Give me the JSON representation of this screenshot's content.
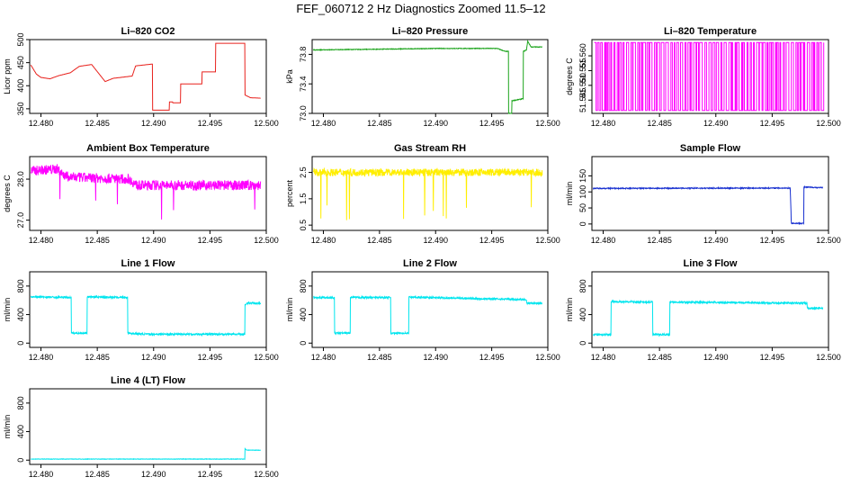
{
  "title": "FEF_060712  2 Hz Diagnostics Zoomed 11.5–12",
  "chart_data": [
    {
      "type": "line",
      "title": "Li–820 CO2",
      "xlabel": "",
      "ylabel": "Licor ppm",
      "color": "#e8211c",
      "xlim": [
        12.479,
        12.5
      ],
      "ylim": [
        340,
        500
      ],
      "xticks": [
        "12.480",
        "12.485",
        "12.490",
        "12.495",
        "12.500"
      ],
      "yticks": [
        "350",
        "400",
        "450",
        "500"
      ],
      "noise": 0.01,
      "series": [
        {
          "x": [
            12.4791,
            12.4796,
            12.48,
            12.4808,
            12.4816,
            12.4816,
            12.4826,
            12.4826,
            12.4834,
            12.4834,
            12.4845,
            12.4845,
            12.4857,
            12.4857,
            12.4864,
            12.4864,
            12.4881,
            12.4881,
            12.4884,
            12.4884,
            12.4899,
            12.4899,
            12.4914,
            12.4914,
            12.4917,
            12.4917,
            12.4924,
            12.4924,
            12.4943,
            12.4943,
            12.4955,
            12.4955,
            12.4981,
            12.4981,
            12.4986,
            12.4995
          ],
          "y": [
            445,
            425,
            418,
            415,
            422,
            422,
            428,
            428,
            442,
            442,
            446,
            446,
            409,
            409,
            416,
            416,
            421,
            421,
            443,
            443,
            447,
            347,
            347,
            365,
            365,
            363,
            363,
            404,
            404,
            430,
            430,
            492,
            492,
            380,
            374,
            373
          ]
        }
      ]
    },
    {
      "type": "line",
      "title": "Li–820 Pressure",
      "xlabel": "",
      "ylabel": "kPa",
      "color": "#1ca41c",
      "xlim": [
        12.479,
        12.5
      ],
      "ylim": [
        73.0,
        74.0
      ],
      "xticks": [
        "12.480",
        "12.485",
        "12.490",
        "12.495",
        "12.500"
      ],
      "yticks": [
        "73.0",
        "73.4",
        "73.8"
      ],
      "noise": 0.004,
      "series": [
        {
          "x": [
            12.4791,
            12.485,
            12.49,
            12.4955,
            12.4962,
            12.4965,
            12.4965,
            12.4968,
            12.4968,
            12.4978,
            12.4978,
            12.4981,
            12.4982,
            12.4985,
            12.4995
          ],
          "y": [
            73.86,
            73.87,
            73.88,
            73.88,
            73.84,
            73.84,
            73.0,
            73.0,
            73.17,
            73.2,
            73.84,
            73.86,
            73.98,
            73.9,
            73.9
          ]
        }
      ]
    },
    {
      "type": "line",
      "title": "Li–820 Temperature",
      "xlabel": "",
      "ylabel": "degrees C",
      "color": "#ff00ff",
      "xlim": [
        12.479,
        12.5
      ],
      "ylim": [
        51.5405,
        51.5655
      ],
      "xticks": [
        "12.480",
        "12.485",
        "12.490",
        "12.495",
        "12.500"
      ],
      "yticks": [
        "51.545",
        "51.550",
        "51.555",
        "51.560"
      ],
      "series": [
        {
          "x": [],
          "y": []
        }
      ],
      "square_wave": {
        "low": 51.5415,
        "high": 51.5645,
        "transitions": 140
      }
    },
    {
      "type": "line",
      "title": "Ambient Box Temperature",
      "xlabel": "",
      "ylabel": "degrees C",
      "color": "#ff00ff",
      "xlim": [
        12.479,
        12.5
      ],
      "ylim": [
        26.75,
        28.55
      ],
      "xticks": [
        "12.480",
        "12.485",
        "12.490",
        "12.495",
        "12.500"
      ],
      "yticks": [
        "27.0",
        "28.0"
      ],
      "noise": 0.12,
      "series": [
        {
          "x": [
            12.4791,
            12.4815,
            12.482,
            12.4825,
            12.4878,
            12.4885,
            12.4995
          ],
          "y": [
            28.2,
            28.25,
            28.1,
            28.05,
            28.0,
            27.85,
            27.85
          ]
        }
      ]
    },
    {
      "type": "line",
      "title": "Gas Stream RH",
      "xlabel": "",
      "ylabel": "percent",
      "color": "#ffee00",
      "xlim": [
        12.479,
        12.5
      ],
      "ylim": [
        0.3,
        3.1
      ],
      "xticks": [
        "12.480",
        "12.485",
        "12.490",
        "12.495",
        "12.500"
      ],
      "yticks": [
        "0.5",
        "1.5",
        "2.5"
      ],
      "noise": 0.14,
      "series": [
        {
          "x": [
            12.4791,
            12.4995
          ],
          "y": [
            2.5,
            2.5
          ]
        }
      ]
    },
    {
      "type": "line",
      "title": "Sample Flow",
      "xlabel": "",
      "ylabel": "ml/min",
      "color": "#1830d0",
      "xlim": [
        12.479,
        12.5
      ],
      "ylim": [
        -20,
        210
      ],
      "xticks": [
        "12.480",
        "12.485",
        "12.490",
        "12.495",
        "12.500"
      ],
      "yticks": [
        "0",
        "50",
        "100",
        "150"
      ],
      "noise": 1.5,
      "series": [
        {
          "x": [
            12.4791,
            12.4966,
            12.4966,
            12.4967,
            12.4978,
            12.4978,
            12.4995
          ],
          "y": [
            111,
            112,
            112,
            2,
            2,
            115,
            113
          ]
        }
      ]
    },
    {
      "type": "line",
      "title": "Line 1 Flow",
      "xlabel": "",
      "ylabel": "ml/min",
      "color": "#00e5ee",
      "xlim": [
        12.479,
        12.5
      ],
      "ylim": [
        -60,
        1000
      ],
      "xticks": [
        "12.480",
        "12.485",
        "12.490",
        "12.495",
        "12.500"
      ],
      "yticks": [
        "0",
        "400",
        "800"
      ],
      "noise": 12,
      "series": [
        {
          "x": [
            12.4791,
            12.4827,
            12.4827,
            12.4841,
            12.4841,
            12.4877,
            12.4877,
            12.4893,
            12.4981,
            12.4981,
            12.4983,
            12.4995
          ],
          "y": [
            650,
            640,
            140,
            140,
            650,
            640,
            140,
            125,
            125,
            540,
            560,
            560
          ]
        }
      ]
    },
    {
      "type": "line",
      "title": "Line 2 Flow",
      "xlabel": "",
      "ylabel": "ml/min",
      "color": "#00e5ee",
      "xlim": [
        12.479,
        12.5
      ],
      "ylim": [
        -60,
        1000
      ],
      "xticks": [
        "12.480",
        "12.485",
        "12.490",
        "12.495",
        "12.500"
      ],
      "yticks": [
        "0",
        "400",
        "800"
      ],
      "noise": 12,
      "series": [
        {
          "x": [
            12.4791,
            12.481,
            12.481,
            12.4824,
            12.4824,
            12.486,
            12.486,
            12.4876,
            12.4876,
            12.4981,
            12.4981,
            12.4995
          ],
          "y": [
            640,
            635,
            140,
            140,
            640,
            640,
            140,
            140,
            645,
            610,
            560,
            560
          ]
        }
      ]
    },
    {
      "type": "line",
      "title": "Line 3 Flow",
      "xlabel": "",
      "ylabel": "ml/min",
      "color": "#00e5ee",
      "xlim": [
        12.479,
        12.5
      ],
      "ylim": [
        -60,
        1000
      ],
      "xticks": [
        "12.480",
        "12.485",
        "12.490",
        "12.495",
        "12.500"
      ],
      "yticks": [
        "0",
        "400",
        "800"
      ],
      "noise": 12,
      "series": [
        {
          "x": [
            12.4791,
            12.4807,
            12.4807,
            12.4844,
            12.4844,
            12.4859,
            12.4859,
            12.4981,
            12.4981,
            12.4995
          ],
          "y": [
            120,
            120,
            580,
            575,
            120,
            120,
            575,
            560,
            490,
            490
          ]
        }
      ]
    },
    {
      "type": "line",
      "title": "Line 4 (LT) Flow",
      "xlabel": "",
      "ylabel": "ml/min",
      "color": "#00e5ee",
      "xlim": [
        12.479,
        12.5
      ],
      "ylim": [
        -60,
        1000
      ],
      "xticks": [
        "12.480",
        "12.485",
        "12.490",
        "12.495",
        "12.500"
      ],
      "yticks": [
        "0",
        "400",
        "800"
      ],
      "noise": 3,
      "series": [
        {
          "x": [
            12.4791,
            12.4981,
            12.4981,
            12.4983,
            12.4995
          ],
          "y": [
            15,
            15,
            160,
            140,
            140
          ]
        }
      ]
    }
  ]
}
